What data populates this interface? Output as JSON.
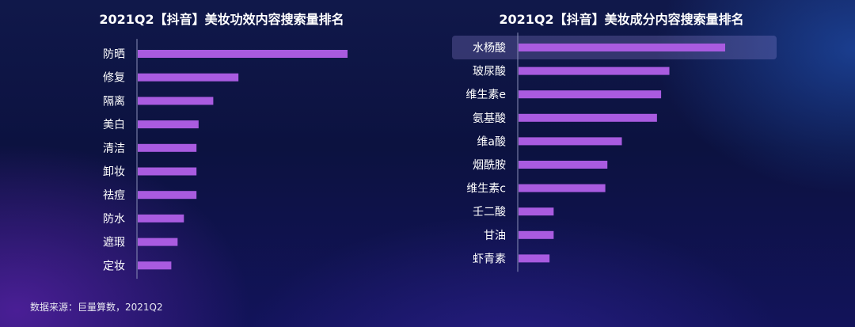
{
  "chart_data": [
    {
      "type": "bar",
      "orientation": "horizontal",
      "title": "2021Q2【抖音】美妆功效内容搜索量排名",
      "categories": [
        "防晒",
        "修复",
        "隔离",
        "美白",
        "清洁",
        "卸妆",
        "祛痘",
        "防水",
        "遮瑕",
        "定妆"
      ],
      "values": [
        100,
        48,
        36,
        29,
        28,
        28,
        28,
        22,
        19,
        16
      ],
      "xlim": [
        0,
        100
      ],
      "grid": false,
      "bar_color": "#a95be0"
    },
    {
      "type": "bar",
      "orientation": "horizontal",
      "title": "2021Q2【抖音】美妆成分内容搜索量排名",
      "categories": [
        "水杨酸",
        "玻尿酸",
        "维生素e",
        "氨基酸",
        "维a酸",
        "烟酰胺",
        "维生素c",
        "壬二酸",
        "甘油",
        "虾青素"
      ],
      "values": [
        100,
        73,
        69,
        67,
        50,
        43,
        42,
        17,
        17,
        15
      ],
      "xlim": [
        0,
        100
      ],
      "grid": false,
      "highlighted_category": "水杨酸",
      "bar_color": "#a95be0"
    }
  ],
  "footer": {
    "source_label": "数据来源：巨量算数，2021Q2"
  }
}
